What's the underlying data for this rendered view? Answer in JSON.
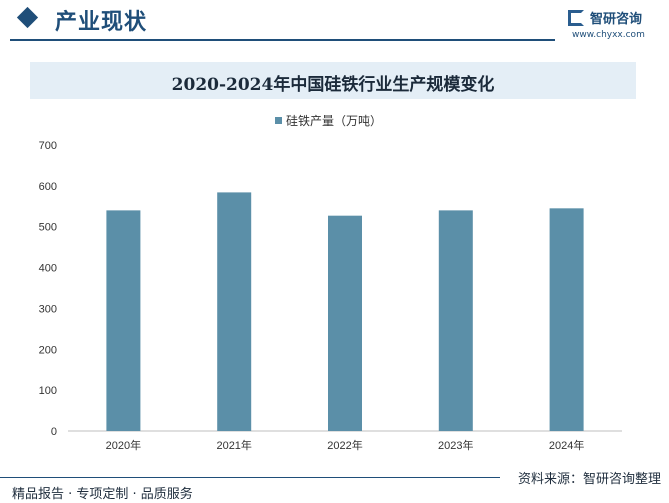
{
  "header": {
    "section_title": "产业现状",
    "logo_name": "智研咨询",
    "logo_url": "www.chyxx.com"
  },
  "chart_data": {
    "type": "bar",
    "title": "2020-2024年中国硅铁行业生产规模变化",
    "categories": [
      "2020年",
      "2021年",
      "2022年",
      "2023年",
      "2024年"
    ],
    "series": [
      {
        "name": "硅铁产量（万吨）",
        "values": [
          540,
          584,
          527,
          540,
          545
        ]
      }
    ],
    "ylim": [
      0,
      700
    ],
    "yticks": [
      0,
      100,
      200,
      300,
      400,
      500,
      600,
      700
    ],
    "xlabel": "",
    "ylabel": "",
    "grid": false,
    "legend": "top-center",
    "bar_color": "#5b8fa8"
  },
  "footer": {
    "source": "资料来源：智研咨询整理",
    "tagline": "精品报告 · 专项定制 · 品质服务"
  }
}
